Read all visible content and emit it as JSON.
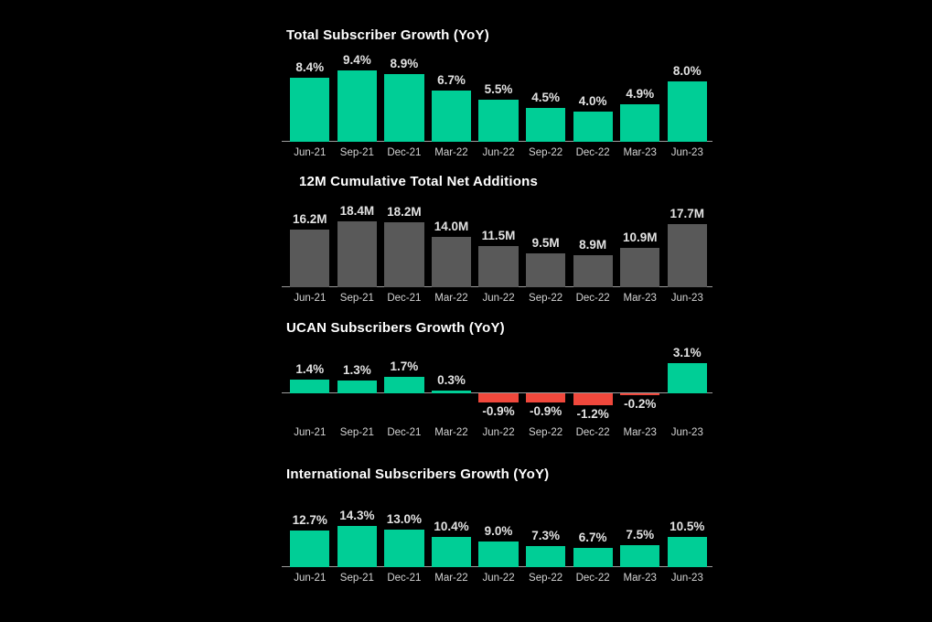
{
  "page": {
    "background": "#000000",
    "title_color": "#ffffff",
    "value_label_color": "#e2e2e2",
    "axis_label_color": "#d4d4d4",
    "axis_line_color": "#9c9c9c"
  },
  "colors": {
    "positive_green": "#00ce96",
    "negative_red": "#f0483c",
    "neutral_gray": "#595959"
  },
  "chart_data": [
    {
      "type": "bar",
      "title": "Total Subscriber Growth (YoY)",
      "categories": [
        "Jun-21",
        "Sep-21",
        "Dec-21",
        "Mar-22",
        "Jun-22",
        "Sep-22",
        "Dec-22",
        "Mar-23",
        "Jun-23"
      ],
      "values": [
        8.4,
        9.4,
        8.9,
        6.7,
        5.5,
        4.5,
        4.0,
        4.9,
        8.0
      ],
      "labels": [
        "8.4%",
        "9.4%",
        "8.9%",
        "6.7%",
        "5.5%",
        "4.5%",
        "4.0%",
        "4.9%",
        "8.0%"
      ],
      "unit": "%",
      "bar_color": "#00ce96",
      "negative_color": "#f0483c",
      "ylim": [
        0,
        9.4
      ],
      "grid": false,
      "legend": false
    },
    {
      "type": "bar",
      "title": "12M Cumulative Total Net Additions",
      "categories": [
        "Jun-21",
        "Sep-21",
        "Dec-21",
        "Mar-22",
        "Jun-22",
        "Sep-22",
        "Dec-22",
        "Mar-23",
        "Jun-23"
      ],
      "values": [
        16.2,
        18.4,
        18.2,
        14.0,
        11.5,
        9.5,
        8.9,
        10.9,
        17.7
      ],
      "labels": [
        "16.2M",
        "18.4M",
        "18.2M",
        "14.0M",
        "11.5M",
        "9.5M",
        "8.9M",
        "10.9M",
        "17.7M"
      ],
      "unit": "M",
      "bar_color": "#595959",
      "negative_color": "#595959",
      "ylim": [
        0,
        18.4
      ],
      "grid": false,
      "legend": false
    },
    {
      "type": "bar",
      "title": "UCAN Subscribers Growth (YoY)",
      "categories": [
        "Jun-21",
        "Sep-21",
        "Dec-21",
        "Mar-22",
        "Jun-22",
        "Sep-22",
        "Dec-22",
        "Mar-23",
        "Jun-23"
      ],
      "values": [
        1.4,
        1.3,
        1.7,
        0.3,
        -0.9,
        -0.9,
        -1.2,
        -0.2,
        3.1
      ],
      "labels": [
        "1.4%",
        "1.3%",
        "1.7%",
        "0.3%",
        "-0.9%",
        "-0.9%",
        "-1.2%",
        "-0.2%",
        "3.1%"
      ],
      "unit": "%",
      "bar_color": "#00ce96",
      "negative_color": "#f0483c",
      "ylim": [
        -1.2,
        3.1
      ],
      "grid": false,
      "legend": false
    },
    {
      "type": "bar",
      "title": "International Subscribers Growth (YoY)",
      "categories": [
        "Jun-21",
        "Sep-21",
        "Dec-21",
        "Mar-22",
        "Jun-22",
        "Sep-22",
        "Dec-22",
        "Mar-23",
        "Jun-23"
      ],
      "values": [
        12.7,
        14.3,
        13.0,
        10.4,
        9.0,
        7.3,
        6.7,
        7.5,
        10.5
      ],
      "labels": [
        "12.7%",
        "14.3%",
        "13.0%",
        "10.4%",
        "9.0%",
        "7.3%",
        "6.7%",
        "7.5%",
        "10.5%"
      ],
      "unit": "%",
      "bar_color": "#00ce96",
      "negative_color": "#f0483c",
      "ylim": [
        0,
        14.3
      ],
      "grid": false,
      "legend": false
    }
  ]
}
